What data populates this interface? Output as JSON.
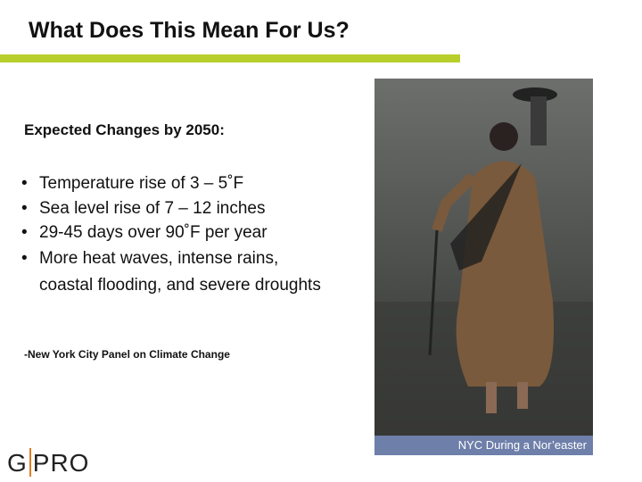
{
  "header": {
    "title": "What Does This Mean For Us?"
  },
  "subtitle": "Expected Changes by 2050:",
  "bullets": [
    "Temperature rise of 3 – 5˚F",
    "Sea level rise of 7 – 12 inches",
    "29-45 days over 90˚F per year",
    "More heat waves, intense rains, coastal flooding, and severe droughts"
  ],
  "source": "-New York City Panel on Climate Change",
  "photo": {
    "caption": "NYC During a Nor’easter"
  },
  "logo": [
    "G",
    "PRO"
  ]
}
